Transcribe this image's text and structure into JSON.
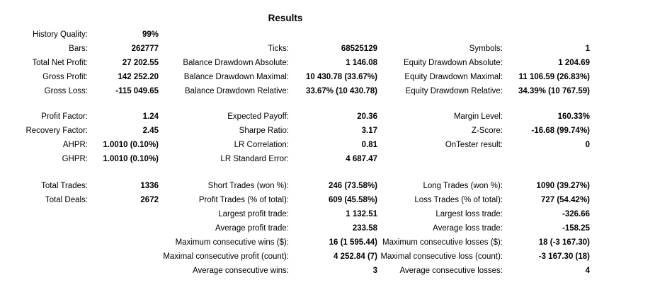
{
  "title": "Results",
  "rows": [
    [
      {
        "label": "History Quality:",
        "value": "99%"
      },
      null,
      null
    ],
    [
      {
        "label": "Bars:",
        "value": "262777"
      },
      {
        "label": "Ticks:",
        "value": "68525129"
      },
      {
        "label": "Symbols:",
        "value": "1"
      }
    ],
    [
      {
        "label": "Total Net Profit:",
        "value": "27 202.55"
      },
      {
        "label": "Balance Drawdown Absolute:",
        "value": "1 146.08"
      },
      {
        "label": "Equity Drawdown Absolute:",
        "value": "1 204.69"
      }
    ],
    [
      {
        "label": "Gross Profit:",
        "value": "142 252.20"
      },
      {
        "label": "Balance Drawdown Maximal:",
        "value": "10 430.78 (33.67%)"
      },
      {
        "label": "Equity Drawdown Maximal:",
        "value": "11 106.59 (26.83%)"
      }
    ],
    [
      {
        "label": "Gross Loss:",
        "value": "-115 049.65"
      },
      {
        "label": "Balance Drawdown Relative:",
        "value": "33.67% (10 430.78)"
      },
      {
        "label": "Equity Drawdown Relative:",
        "value": "34.39% (10 767.59)"
      }
    ],
    [
      {
        "label": "Profit Factor:",
        "value": "1.24"
      },
      {
        "label": "Expected Payoff:",
        "value": "20.36"
      },
      {
        "label": "Margin Level:",
        "value": "160.33%"
      }
    ],
    [
      {
        "label": "Recovery Factor:",
        "value": "2.45"
      },
      {
        "label": "Sharpe Ratio:",
        "value": "3.17"
      },
      {
        "label": "Z-Score:",
        "value": "-16.68 (99.74%)"
      }
    ],
    [
      {
        "label": "AHPR:",
        "value": "1.0010 (0.10%)"
      },
      {
        "label": "LR Correlation:",
        "value": "0.81"
      },
      {
        "label": "OnTester result:",
        "value": "0"
      }
    ],
    [
      {
        "label": "GHPR:",
        "value": "1.0010 (0.10%)"
      },
      {
        "label": "LR Standard Error:",
        "value": "4 687.47"
      },
      null
    ],
    [
      {
        "label": "Total Trades:",
        "value": "1336"
      },
      {
        "label": "Short Trades (won %):",
        "value": "246 (73.58%)"
      },
      {
        "label": "Long Trades (won %):",
        "value": "1090 (39.27%)"
      }
    ],
    [
      {
        "label": "Total Deals:",
        "value": "2672"
      },
      {
        "label": "Profit Trades (% of total):",
        "value": "609 (45.58%)"
      },
      {
        "label": "Loss Trades (% of total):",
        "value": "727 (54.42%)"
      }
    ],
    [
      null,
      {
        "label": "Largest profit trade:",
        "value": "1 132.51"
      },
      {
        "label": "Largest loss trade:",
        "value": "-326.66"
      }
    ],
    [
      null,
      {
        "label": "Average profit trade:",
        "value": "233.58"
      },
      {
        "label": "Average loss trade:",
        "value": "-158.25"
      }
    ],
    [
      null,
      {
        "label": "Maximum consecutive wins ($):",
        "value": "16 (1 595.44)"
      },
      {
        "label": "Maximum consecutive losses ($):",
        "value": "18 (-3 167.30)"
      }
    ],
    [
      null,
      {
        "label": "Maximal consecutive profit (count):",
        "value": "4 252.84 (7)"
      },
      {
        "label": "Maximal consecutive loss (count):",
        "value": "-3 167.30 (18)"
      }
    ],
    [
      null,
      {
        "label": "Average consecutive wins:",
        "value": "3"
      },
      {
        "label": "Average consecutive losses:",
        "value": "4"
      }
    ]
  ]
}
